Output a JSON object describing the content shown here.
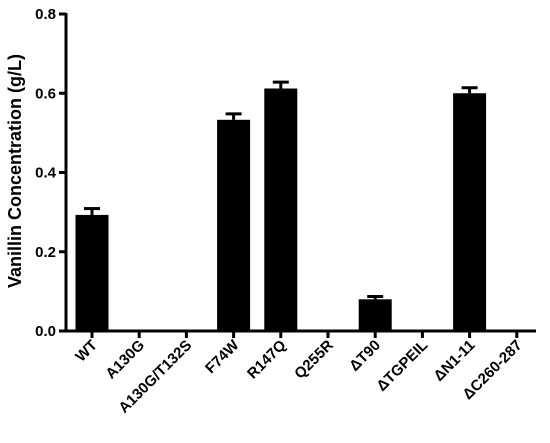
{
  "chart_data": {
    "type": "bar",
    "title": "",
    "xlabel": "",
    "ylabel": "Vanillin Concentration (g/L)",
    "ylim": [
      0,
      0.8
    ],
    "yticks": [
      "0.0",
      "0.2",
      "0.4",
      "0.6",
      "0.8"
    ],
    "grid": false,
    "categories": [
      "WT",
      "A130G",
      "A130G/T132S",
      "F74W",
      "R147Q",
      "Q255R",
      "ΔT90",
      "ΔTGPEIL",
      "ΔN1-11",
      "ΔC260-287"
    ],
    "values": [
      0.293,
      0,
      0,
      0.533,
      0.612,
      0,
      0.08,
      0,
      0.6,
      0
    ],
    "errors": [
      0.016,
      0,
      0,
      0.015,
      0.016,
      0,
      0.007,
      0,
      0.014,
      0
    ],
    "bar_color": "#000000"
  }
}
